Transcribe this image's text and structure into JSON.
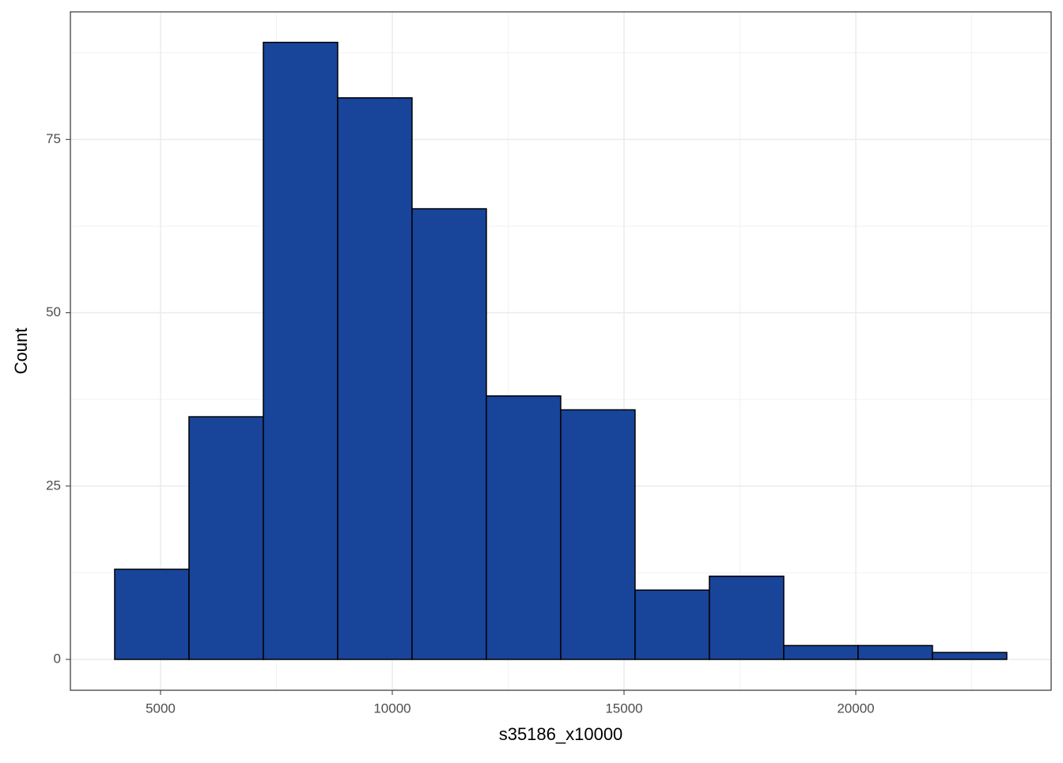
{
  "chart_data": {
    "type": "histogram",
    "x_label": "s35186_x10000",
    "y_label": "Count",
    "bins": [
      4010,
      5614,
      7218,
      8822,
      10426,
      12030,
      13634,
      15238,
      16842,
      18446,
      20050,
      21654,
      23258
    ],
    "values": [
      13,
      35,
      89,
      81,
      65,
      38,
      36,
      10,
      12,
      2,
      2,
      1
    ],
    "color": "#18449a",
    "edge_color": "#000000",
    "xlim": [
      3055,
      24215
    ],
    "ylim": [
      -4.45,
      93.4
    ],
    "xticks": [
      5000,
      10000,
      15000,
      20000
    ],
    "yticks": [
      0,
      25,
      50,
      75
    ],
    "grid": true
  }
}
